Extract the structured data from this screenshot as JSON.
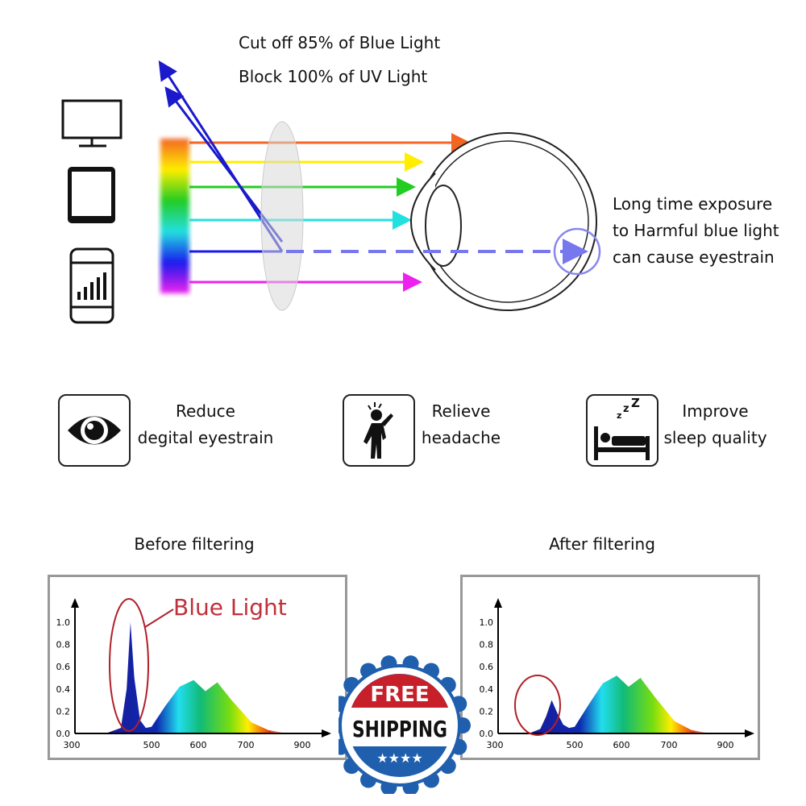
{
  "header": {
    "line1": "Cut off 85% of Blue Light",
    "line2": "Block 100% of UV Light"
  },
  "eye_note": [
    "Long time exposure",
    "to Harmful blue light",
    "can cause eyestrain"
  ],
  "devices": [
    "monitor-icon",
    "tablet-icon",
    "smartphone-icon"
  ],
  "light_colors": [
    "#f26522",
    "#ffee00",
    "#22cc22",
    "#22e0e0",
    "#1a1aee",
    "#ee22ee"
  ],
  "features": [
    {
      "icon": "eye-icon",
      "line1": "Reduce",
      "line2": "degital eyestrain"
    },
    {
      "icon": "headache-person-icon",
      "line1": "Relieve",
      "line2": "headache"
    },
    {
      "icon": "sleeping-bed-icon",
      "line1": "Improve",
      "line2": "sleep quality"
    }
  ],
  "badge": {
    "top": "FREE",
    "main": "SHIPPING",
    "stars": "★★★★"
  },
  "chart_data": [
    {
      "type": "area",
      "title": "Before filtering",
      "annotation": "Blue Light",
      "x_ticks": [
        300,
        500,
        600,
        700,
        900
      ],
      "y_ticks": [
        "0.0",
        "0.2",
        "0.4",
        "0.6",
        "0.8",
        "1.0"
      ],
      "ylim": [
        0,
        1.0
      ],
      "x": [
        380,
        420,
        435,
        445,
        455,
        470,
        485,
        500,
        530,
        560,
        590,
        615,
        640,
        670,
        720,
        780,
        850
      ],
      "y": [
        0,
        0.05,
        0.4,
        1.0,
        0.5,
        0.12,
        0.05,
        0.06,
        0.25,
        0.42,
        0.48,
        0.38,
        0.46,
        0.3,
        0.1,
        0.03,
        0
      ]
    },
    {
      "type": "area",
      "title": "After filtering",
      "x_ticks": [
        300,
        500,
        600,
        700,
        900
      ],
      "y_ticks": [
        "0.0",
        "0.2",
        "0.4",
        "0.6",
        "0.8",
        "1.0"
      ],
      "ylim": [
        0,
        1.0
      ],
      "x": [
        380,
        410,
        425,
        440,
        455,
        470,
        485,
        500,
        530,
        560,
        590,
        615,
        640,
        670,
        720,
        780,
        850
      ],
      "y": [
        0,
        0.04,
        0.15,
        0.3,
        0.18,
        0.08,
        0.05,
        0.06,
        0.26,
        0.45,
        0.52,
        0.42,
        0.5,
        0.33,
        0.11,
        0.03,
        0
      ]
    }
  ]
}
